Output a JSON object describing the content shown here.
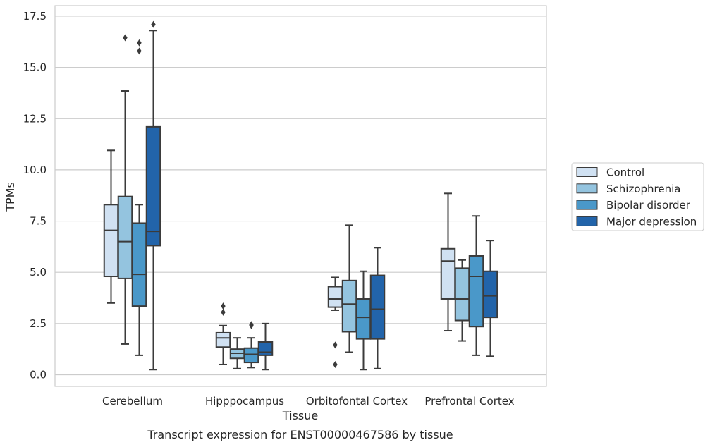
{
  "chart_data": {
    "type": "boxplot",
    "title": "",
    "caption": "Transcript expression for ENST00000467586 by tissue",
    "xlabel": "Tissue",
    "ylabel": "TPMs",
    "ylim": [
      -0.6,
      17.9
    ],
    "yticks": [
      0.0,
      2.5,
      5.0,
      7.5,
      10.0,
      12.5,
      15.0,
      17.5
    ],
    "ytick_labels": [
      "0.0",
      "2.5",
      "5.0",
      "7.5",
      "10.0",
      "12.5",
      "15.0",
      "17.5"
    ],
    "grid": true,
    "legend_position": "right",
    "categories": [
      "Cerebellum",
      "Hipppocampus",
      "Orbitofontal Cortex",
      "Prefrontal Cortex"
    ],
    "series": [
      {
        "name": "Control",
        "color": "#d0e1f2",
        "boxes": [
          {
            "whislo": 3.5,
            "q1": 4.8,
            "med": 7.05,
            "q3": 8.3,
            "whishi": 10.95,
            "fliers": []
          },
          {
            "whislo": 0.5,
            "q1": 1.35,
            "med": 1.8,
            "q3": 2.05,
            "whishi": 2.4,
            "fliers": [
              3.05,
              3.35
            ]
          },
          {
            "whislo": 3.15,
            "q1": 3.3,
            "med": 3.7,
            "q3": 4.3,
            "whishi": 4.75,
            "fliers": [
              1.45,
              0.5
            ]
          },
          {
            "whislo": 2.15,
            "q1": 3.7,
            "med": 5.55,
            "q3": 6.15,
            "whishi": 8.85,
            "fliers": []
          }
        ]
      },
      {
        "name": "Schizophrenia",
        "color": "#94c4df",
        "boxes": [
          {
            "whislo": 1.5,
            "q1": 4.7,
            "med": 6.5,
            "q3": 8.7,
            "whishi": 13.85,
            "fliers": [
              16.45
            ]
          },
          {
            "whislo": 0.3,
            "q1": 0.8,
            "med": 1.05,
            "q3": 1.25,
            "whishi": 1.8,
            "fliers": []
          },
          {
            "whislo": 1.1,
            "q1": 2.1,
            "med": 3.45,
            "q3": 4.6,
            "whishi": 7.3,
            "fliers": []
          },
          {
            "whislo": 1.65,
            "q1": 2.65,
            "med": 3.7,
            "q3": 5.2,
            "whishi": 5.6,
            "fliers": []
          }
        ]
      },
      {
        "name": "Bipolar disorder",
        "color": "#4a98c9",
        "boxes": [
          {
            "whislo": 0.95,
            "q1": 3.35,
            "med": 4.9,
            "q3": 7.4,
            "whishi": 8.3,
            "fliers": [
              15.8,
              16.2
            ]
          },
          {
            "whislo": 0.35,
            "q1": 0.6,
            "med": 1.0,
            "q3": 1.3,
            "whishi": 1.8,
            "fliers": [
              2.4,
              2.45
            ]
          },
          {
            "whislo": 0.25,
            "q1": 1.75,
            "med": 2.8,
            "q3": 3.7,
            "whishi": 5.05,
            "fliers": []
          },
          {
            "whislo": 0.95,
            "q1": 2.35,
            "med": 4.8,
            "q3": 5.8,
            "whishi": 7.75,
            "fliers": []
          }
        ]
      },
      {
        "name": "Major depression",
        "color": "#2264aa",
        "boxes": [
          {
            "whislo": 0.25,
            "q1": 6.3,
            "med": 7.0,
            "q3": 12.1,
            "whishi": 16.8,
            "fliers": [
              17.1
            ]
          },
          {
            "whislo": 0.25,
            "q1": 0.95,
            "med": 1.1,
            "q3": 1.6,
            "whishi": 2.5,
            "fliers": []
          },
          {
            "whislo": 0.3,
            "q1": 1.75,
            "med": 3.2,
            "q3": 4.85,
            "whishi": 6.2,
            "fliers": []
          },
          {
            "whislo": 0.9,
            "q1": 2.8,
            "med": 3.85,
            "q3": 5.05,
            "whishi": 6.55,
            "fliers": []
          }
        ]
      }
    ]
  }
}
